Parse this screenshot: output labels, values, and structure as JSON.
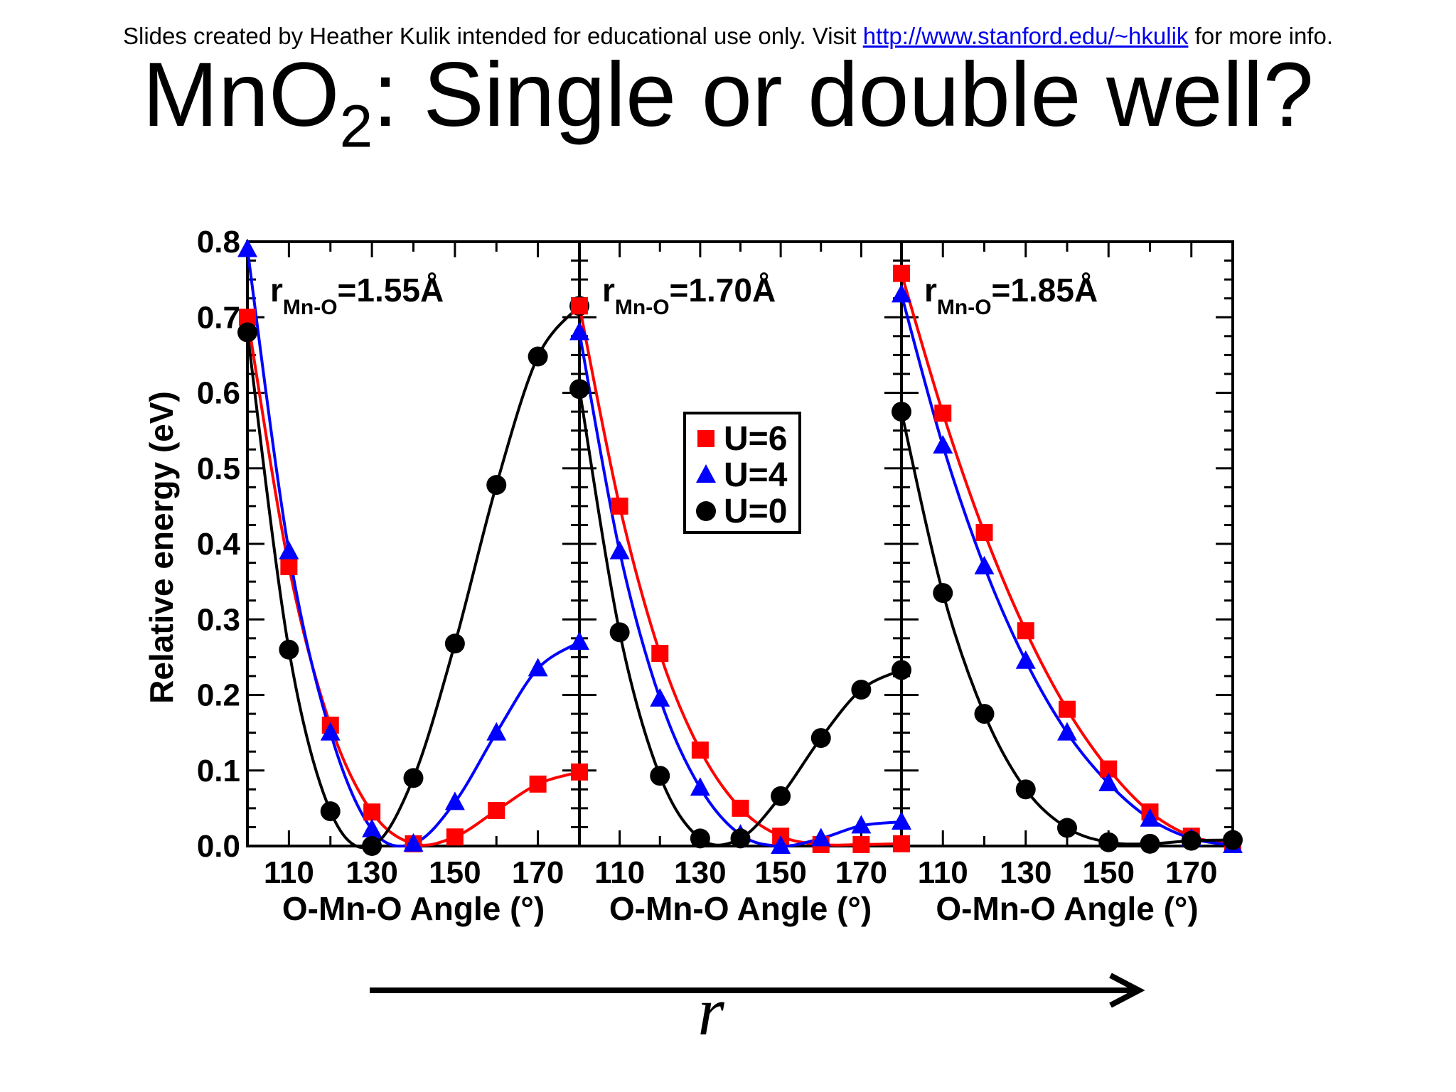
{
  "header_note": {
    "prefix": "Slides created by Heather Kulik intended for educational use only. Visit ",
    "link": "http://www.stanford.edu/~hkulik",
    "suffix": " for more info."
  },
  "title": {
    "pre": "MnO",
    "sub": "2",
    "post": ": Single or double well?"
  },
  "arrow_label": "r",
  "colors": {
    "U=6": "#ff0000",
    "U=4": "#0000ff",
    "U=0": "#000000"
  },
  "chart_data": {
    "type": "line",
    "ylabel": "Relative energy (eV)",
    "ylim": [
      0.0,
      0.8
    ],
    "yticks": [
      "0.0",
      "0.1",
      "0.2",
      "0.3",
      "0.4",
      "0.5",
      "0.6",
      "0.7",
      "0.8"
    ],
    "xlim": [
      100,
      180
    ],
    "xticks": [
      "110",
      "130",
      "150",
      "170"
    ],
    "legend": [
      "U=6",
      "U=4",
      "U=0"
    ],
    "legend_markers": {
      "U=6": "square",
      "U=4": "triangle",
      "U=0": "circle"
    },
    "legend_position": "upper-left of middle panel",
    "panels": [
      {
        "label_r": "r",
        "label_sub": "Mn-O",
        "label_val": "=1.55Å",
        "xlabel": "O-Mn-O Angle (°)",
        "x": [
          100,
          110,
          120,
          130,
          140,
          150,
          160,
          170,
          180
        ],
        "series": [
          {
            "name": "U=6",
            "values": [
              0.7,
              0.37,
              0.16,
              0.045,
              0.003,
              0.012,
              0.047,
              0.082,
              0.098
            ]
          },
          {
            "name": "U=4",
            "values": [
              0.79,
              0.39,
              0.15,
              0.022,
              0.003,
              0.058,
              0.15,
              0.235,
              0.27
            ]
          },
          {
            "name": "U=0",
            "values": [
              0.68,
              0.26,
              0.046,
              0.0,
              0.09,
              0.268,
              0.478,
              0.648,
              0.715
            ]
          }
        ]
      },
      {
        "label_r": "r",
        "label_sub": "Mn-O",
        "label_val": "=1.70Å",
        "xlabel": "O-Mn-O Angle (°)",
        "x": [
          100,
          110,
          120,
          130,
          140,
          150,
          160,
          170,
          180
        ],
        "series": [
          {
            "name": "U=6",
            "values": [
              0.715,
              0.45,
              0.255,
              0.127,
              0.05,
              0.013,
              0.002,
              0.002,
              0.003
            ]
          },
          {
            "name": "U=4",
            "values": [
              0.68,
              0.39,
              0.195,
              0.077,
              0.015,
              0.0,
              0.01,
              0.027,
              0.032
            ]
          },
          {
            "name": "U=0",
            "values": [
              0.605,
              0.283,
              0.093,
              0.01,
              0.01,
              0.066,
              0.143,
              0.207,
              0.233
            ]
          }
        ]
      },
      {
        "label_r": "r",
        "label_sub": "Mn-O",
        "label_val": "=1.85Å",
        "xlabel": "O-Mn-O Angle (°)",
        "x": [
          100,
          110,
          120,
          130,
          140,
          150,
          160,
          170,
          180
        ],
        "series": [
          {
            "name": "U=6",
            "values": [
              0.758,
              0.573,
              0.415,
              0.285,
              0.181,
              0.102,
              0.045,
              0.013,
              0.002
            ]
          },
          {
            "name": "U=4",
            "values": [
              0.73,
              0.53,
              0.37,
              0.245,
              0.15,
              0.083,
              0.036,
              0.01,
              0.001
            ]
          },
          {
            "name": "U=0",
            "values": [
              0.575,
              0.335,
              0.175,
              0.075,
              0.024,
              0.005,
              0.003,
              0.007,
              0.008
            ]
          }
        ]
      }
    ]
  }
}
